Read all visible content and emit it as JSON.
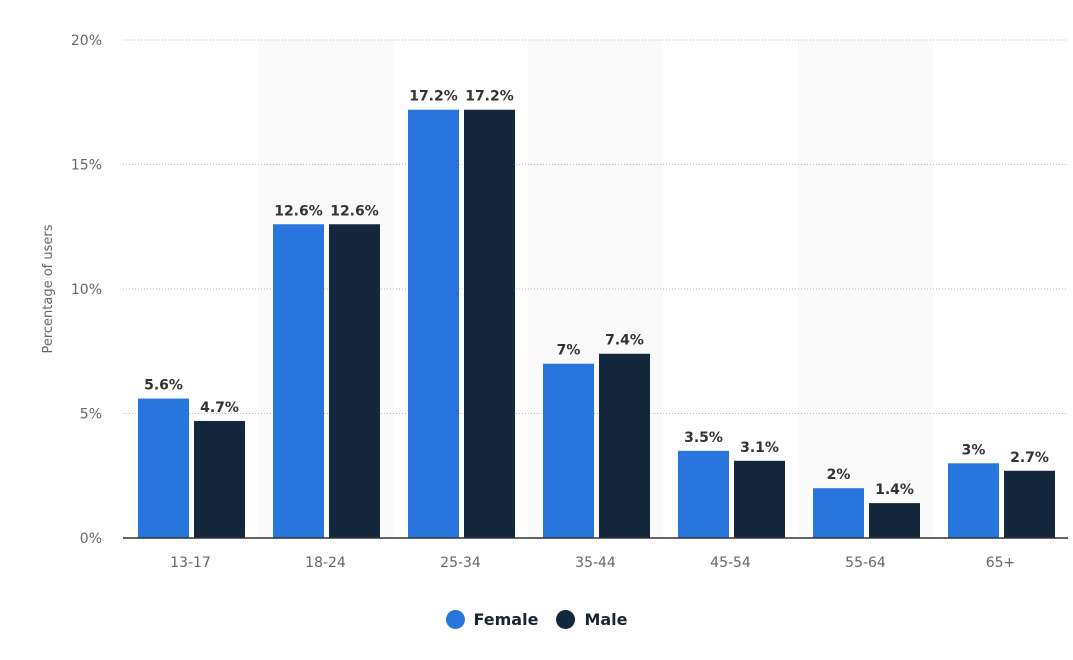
{
  "chart_data": {
    "type": "bar",
    "title": "",
    "xlabel": "",
    "ylabel": "Percentage of users",
    "categories": [
      "13-17",
      "18-24",
      "25-34",
      "35-44",
      "45-54",
      "55-64",
      "65+"
    ],
    "series": [
      {
        "name": "Female",
        "color": "#2876dd",
        "values": [
          5.6,
          12.6,
          17.2,
          7,
          3.5,
          2,
          3
        ],
        "labels": [
          "5.6%",
          "12.6%",
          "17.2%",
          "7%",
          "3.5%",
          "2%",
          "3%"
        ]
      },
      {
        "name": "Male",
        "color": "#14273d",
        "values": [
          4.7,
          12.6,
          17.2,
          7.4,
          3.1,
          1.4,
          2.7
        ],
        "labels": [
          "4.7%",
          "12.6%",
          "17.2%",
          "7.4%",
          "3.1%",
          "1.4%",
          "2.7%"
        ]
      }
    ],
    "ylim": [
      0,
      20
    ],
    "yticks": [
      0,
      5,
      10,
      15,
      20
    ],
    "ytick_labels": [
      "0%",
      "5%",
      "10%",
      "15%",
      "20%"
    ],
    "grid": true,
    "legend": "bottom-center"
  }
}
